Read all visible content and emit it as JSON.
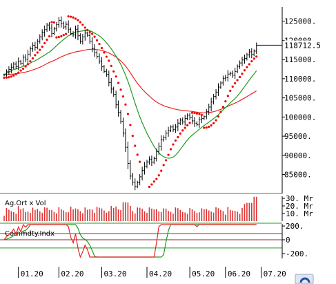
{
  "chart_data": {
    "type": "candlestick",
    "price_panel": {
      "ylim": [
        81500,
        128000
      ],
      "y_ticks": [
        85000,
        90000,
        95000,
        100000,
        105000,
        110000,
        115000,
        120000,
        125000
      ],
      "y_tick_labels": [
        "85000.",
        "90000.",
        "95000.",
        "100000.",
        "105000.",
        "110000.",
        "115000.",
        "120000.",
        "125000."
      ],
      "last_price": 118712.5,
      "last_price_label": "118712.5",
      "price_ohlc_close": [
        111000,
        111800,
        112400,
        113000,
        113800,
        113200,
        114500,
        114000,
        115600,
        115100,
        116400,
        117800,
        118700,
        118200,
        119800,
        120900,
        122000,
        122800,
        124000,
        123200,
        121800,
        123000,
        124100,
        125200,
        124400,
        123500,
        124200,
        122900,
        121800,
        121400,
        122900,
        121200,
        119700,
        120900,
        121900,
        121300,
        119800,
        117900,
        116800,
        115800,
        114600,
        113100,
        111900,
        111100,
        109000,
        107300,
        105900,
        103200,
        101200,
        98900,
        95800,
        92100,
        87900,
        84600,
        83000,
        81900,
        82900,
        84400,
        86100,
        87200,
        88300,
        89000,
        88200,
        89200,
        91000,
        92400,
        94100,
        94700,
        95800,
        96500,
        97400,
        96700,
        97400,
        98400,
        99200,
        98700,
        99600,
        100500,
        99800,
        99000,
        98400,
        98000,
        99300,
        99600,
        100100,
        101400,
        102600,
        103900,
        105400,
        106500,
        107800,
        108900,
        110100,
        110300,
        111200,
        111400,
        110900,
        111900,
        113200,
        114100,
        114900,
        115300,
        116200,
        117000,
        116300,
        117200,
        118700
      ]
    },
    "vol_panel": {
      "title": "Ag.Ort x Vol",
      "y_ticks": [
        10,
        20,
        30
      ],
      "y_tick_labels": [
        "10. Mr",
        "20. Mr",
        "30. Mr"
      ]
    },
    "osc_panel": {
      "title": "Commdty.Indx",
      "y_ticks": [
        -200,
        0,
        200
      ],
      "y_tick_labels": [
        "-200.",
        "0",
        "200."
      ]
    },
    "x_tick_labels": [
      "01.20",
      "02.20",
      "03.20",
      "04.20",
      "05.20",
      "06.20",
      "07.20"
    ],
    "x_tick_index": [
      6,
      23,
      41,
      60,
      78,
      93,
      108
    ],
    "colors": {
      "bars": "#000000",
      "sar": "#ee0000",
      "ma_fast": "#1f9a1f",
      "ma_slow": "#ee2222",
      "volume": "#dd3333",
      "panel_line": "#1f9a1f",
      "price_marker": "#1c2d8c",
      "osc_zero": "#8a2a2a",
      "osc_band": "#1f9a1f"
    }
  }
}
